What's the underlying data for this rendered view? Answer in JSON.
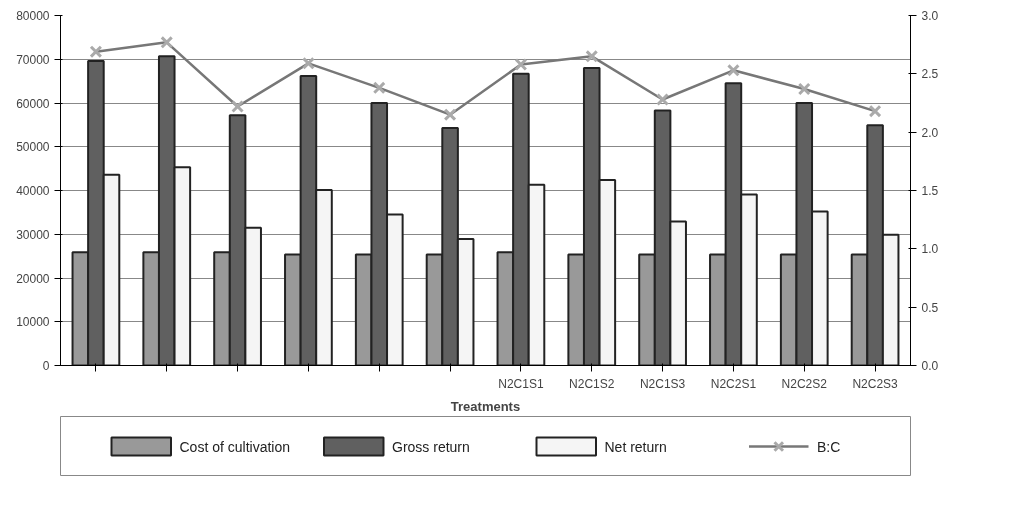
{
  "chart_data": {
    "type": "bar",
    "xlabel": "Treatments",
    "categories": [
      null,
      null,
      null,
      null,
      null,
      null,
      "N2C1S1",
      "N2C1S2",
      "N2C1S3",
      "N2C2S1",
      "N2C2S2",
      "N2C2S3"
    ],
    "series": [
      {
        "name": "Cost of cultivation",
        "color": "#999999",
        "values": [
          25900,
          25900,
          25900,
          25400,
          25400,
          25400,
          25900,
          25400,
          25400,
          25400,
          25400,
          25400
        ]
      },
      {
        "name": "Gross return",
        "color": "#606060",
        "values": [
          69600,
          70700,
          57200,
          66200,
          60000,
          54300,
          66700,
          68000,
          58300,
          64500,
          60000,
          54900
        ]
      },
      {
        "name": "Net return",
        "color": "#f5f5f5",
        "values": [
          43600,
          45300,
          31500,
          40100,
          34500,
          28900,
          41300,
          42400,
          32900,
          39100,
          35200,
          29900
        ]
      },
      {
        "name": "B:C",
        "type": "line",
        "axis": "y2",
        "color": "#777777",
        "marker": "cross",
        "values": [
          2.69,
          2.77,
          2.22,
          2.59,
          2.38,
          2.15,
          2.58,
          2.65,
          2.28,
          2.53,
          2.37,
          2.18
        ]
      }
    ],
    "ylim": [
      0,
      80000
    ],
    "yticks": [
      0,
      10000,
      20000,
      30000,
      40000,
      50000,
      60000,
      70000,
      80000
    ],
    "y2lim": [
      0,
      3.0
    ],
    "y2ticks": [
      {
        "value": 0,
        "label": "0.0"
      },
      0.5,
      {
        "value": 1,
        "label": "1.0"
      },
      1.5,
      {
        "value": 2,
        "label": "2.0"
      },
      2.5,
      {
        "value": 3,
        "label": "3.0"
      }
    ],
    "grid": "y",
    "legend": "bottom"
  }
}
